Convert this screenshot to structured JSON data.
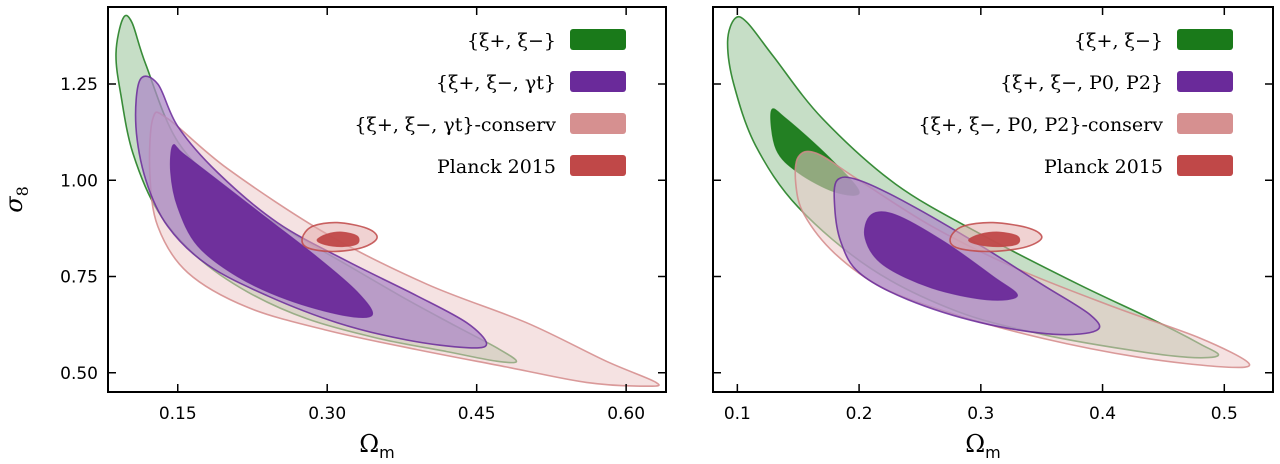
{
  "chart_data": [
    {
      "type": "contour",
      "xlabel": "Ω",
      "xlabel_sub": "m",
      "ylabel": "σ",
      "ylabel_sub": "8",
      "xlim": [
        0.08,
        0.64
      ],
      "ylim": [
        0.45,
        1.45
      ],
      "xticks": [
        0.15,
        0.3,
        0.45,
        0.6
      ],
      "xtick_labels": [
        "0.15",
        "0.30",
        "0.45",
        "0.60"
      ],
      "yticks": [
        0.5,
        0.75,
        1.0,
        1.25
      ],
      "ytick_labels": [
        "0.50",
        "0.75",
        "1.00",
        "1.25"
      ],
      "legend_position": "top-right",
      "series": [
        {
          "name": "{ξ+, ξ−}",
          "color": "#1a7a1a",
          "contours": [
            {
              "level": "95%",
              "points": [
                [
                  0.095,
                  1.42
                ],
                [
                  0.104,
                  1.41
                ],
                [
                  0.118,
                  1.3
                ],
                [
                  0.15,
                  1.1
                ],
                [
                  0.2,
                  0.97
                ],
                [
                  0.26,
                  0.87
                ],
                [
                  0.32,
                  0.78
                ],
                [
                  0.38,
                  0.69
                ],
                [
                  0.43,
                  0.62
                ],
                [
                  0.47,
                  0.565
                ],
                [
                  0.49,
                  0.53
                ],
                [
                  0.47,
                  0.53
                ],
                [
                  0.42,
                  0.555
                ],
                [
                  0.35,
                  0.59
                ],
                [
                  0.28,
                  0.64
                ],
                [
                  0.22,
                  0.71
                ],
                [
                  0.17,
                  0.8
                ],
                [
                  0.13,
                  0.92
                ],
                [
                  0.105,
                  1.07
                ],
                [
                  0.093,
                  1.22
                ],
                [
                  0.088,
                  1.33
                ]
              ]
            }
          ]
        },
        {
          "name": "{ξ+, ξ−, γt}",
          "color": "#6a2a9a",
          "contours": [
            {
              "level": "95%",
              "points": [
                [
                  0.112,
                  1.26
                ],
                [
                  0.13,
                  1.25
                ],
                [
                  0.15,
                  1.14
                ],
                [
                  0.19,
                  1.02
                ],
                [
                  0.25,
                  0.89
                ],
                [
                  0.32,
                  0.79
                ],
                [
                  0.39,
                  0.7
                ],
                [
                  0.44,
                  0.63
                ],
                [
                  0.46,
                  0.575
                ],
                [
                  0.44,
                  0.565
                ],
                [
                  0.38,
                  0.585
                ],
                [
                  0.31,
                  0.63
                ],
                [
                  0.24,
                  0.7
                ],
                [
                  0.18,
                  0.78
                ],
                [
                  0.14,
                  0.88
                ],
                [
                  0.118,
                  1.0
                ],
                [
                  0.108,
                  1.14
                ]
              ]
            },
            {
              "level": "68%",
              "points": [
                [
                  0.145,
                  1.09
                ],
                [
                  0.155,
                  1.07
                ],
                [
                  0.19,
                  1.0
                ],
                [
                  0.24,
                  0.9
                ],
                [
                  0.29,
                  0.8
                ],
                [
                  0.33,
                  0.71
                ],
                [
                  0.345,
                  0.65
                ],
                [
                  0.315,
                  0.65
                ],
                [
                  0.26,
                  0.69
                ],
                [
                  0.21,
                  0.75
                ],
                [
                  0.17,
                  0.83
                ],
                [
                  0.15,
                  0.93
                ],
                [
                  0.143,
                  1.02
                ]
              ]
            }
          ]
        },
        {
          "name": "{ξ+, ξ−, γt}-conserv",
          "color": "#d48a8a",
          "contours": [
            {
              "level": "95%",
              "points": [
                [
                  0.125,
                  1.16
                ],
                [
                  0.14,
                  1.16
                ],
                [
                  0.2,
                  1.03
                ],
                [
                  0.3,
                  0.86
                ],
                [
                  0.4,
                  0.73
                ],
                [
                  0.5,
                  0.63
                ],
                [
                  0.58,
                  0.53
                ],
                [
                  0.63,
                  0.475
                ],
                [
                  0.62,
                  0.465
                ],
                [
                  0.56,
                  0.475
                ],
                [
                  0.48,
                  0.515
                ],
                [
                  0.39,
                  0.56
                ],
                [
                  0.3,
                  0.61
                ],
                [
                  0.22,
                  0.67
                ],
                [
                  0.16,
                  0.76
                ],
                [
                  0.13,
                  0.88
                ],
                [
                  0.122,
                  1.02
                ]
              ]
            }
          ]
        },
        {
          "name": "Planck 2015",
          "color": "#c04848",
          "contours": [
            {
              "level": "95%",
              "points": [
                [
                  0.275,
                  0.85
                ],
                [
                  0.285,
                  0.88
                ],
                [
                  0.31,
                  0.89
                ],
                [
                  0.34,
                  0.875
                ],
                [
                  0.35,
                  0.85
                ],
                [
                  0.335,
                  0.825
                ],
                [
                  0.305,
                  0.815
                ],
                [
                  0.28,
                  0.825
                ]
              ]
            },
            {
              "level": "68%",
              "points": [
                [
                  0.29,
                  0.845
                ],
                [
                  0.3,
                  0.86
                ],
                [
                  0.315,
                  0.865
                ],
                [
                  0.33,
                  0.855
                ],
                [
                  0.33,
                  0.835
                ],
                [
                  0.315,
                  0.828
                ],
                [
                  0.298,
                  0.833
                ]
              ]
            }
          ]
        }
      ]
    },
    {
      "type": "contour",
      "xlabel": "Ω",
      "xlabel_sub": "m",
      "ylim": [
        0.45,
        1.45
      ],
      "xlim": [
        0.08,
        0.54
      ],
      "xticks": [
        0.1,
        0.2,
        0.3,
        0.4,
        0.5
      ],
      "xtick_labels": [
        "0.1",
        "0.2",
        "0.3",
        "0.4",
        "0.5"
      ],
      "yticks": [
        0.5,
        0.75,
        1.0,
        1.25
      ],
      "legend_position": "top-right",
      "series": [
        {
          "name": "{ξ+, ξ−}",
          "color": "#1a7a1a",
          "contours": [
            {
              "level": "95%",
              "points": [
                [
                  0.098,
                  1.42
                ],
                [
                  0.108,
                  1.41
                ],
                [
                  0.13,
                  1.32
                ],
                [
                  0.17,
                  1.16
                ],
                [
                  0.23,
                  0.99
                ],
                [
                  0.3,
                  0.86
                ],
                [
                  0.38,
                  0.73
                ],
                [
                  0.44,
                  0.64
                ],
                [
                  0.48,
                  0.575
                ],
                [
                  0.495,
                  0.545
                ],
                [
                  0.47,
                  0.54
                ],
                [
                  0.42,
                  0.56
                ],
                [
                  0.35,
                  0.6
                ],
                [
                  0.28,
                  0.66
                ],
                [
                  0.21,
                  0.77
                ],
                [
                  0.15,
                  0.93
                ],
                [
                  0.115,
                  1.09
                ],
                [
                  0.097,
                  1.25
                ],
                [
                  0.092,
                  1.36
                ]
              ]
            },
            {
              "level": "68%",
              "points": [
                [
                  0.128,
                  1.18
                ],
                [
                  0.14,
                  1.16
                ],
                [
                  0.175,
                  1.06
                ],
                [
                  0.2,
                  0.97
                ],
                [
                  0.18,
                  0.97
                ],
                [
                  0.15,
                  1.02
                ],
                [
                  0.132,
                  1.08
                ]
              ]
            }
          ]
        },
        {
          "name": "{ξ+, ξ−, P0, P2}",
          "color": "#6a2a9a",
          "contours": [
            {
              "level": "95%",
              "points": [
                [
                  0.182,
                  1.0
                ],
                [
                  0.2,
                  1.0
                ],
                [
                  0.24,
                  0.94
                ],
                [
                  0.3,
                  0.83
                ],
                [
                  0.35,
                  0.73
                ],
                [
                  0.39,
                  0.65
                ],
                [
                  0.395,
                  0.61
                ],
                [
                  0.36,
                  0.6
                ],
                [
                  0.3,
                  0.63
                ],
                [
                  0.24,
                  0.69
                ],
                [
                  0.2,
                  0.76
                ],
                [
                  0.185,
                  0.84
                ],
                [
                  0.18,
                  0.93
                ]
              ]
            },
            {
              "level": "68%",
              "points": [
                [
                  0.21,
                  0.91
                ],
                [
                  0.23,
                  0.91
                ],
                [
                  0.27,
                  0.84
                ],
                [
                  0.31,
                  0.75
                ],
                [
                  0.33,
                  0.7
                ],
                [
                  0.305,
                  0.69
                ],
                [
                  0.26,
                  0.72
                ],
                [
                  0.22,
                  0.78
                ],
                [
                  0.205,
                  0.85
                ]
              ]
            }
          ]
        },
        {
          "name": "{ξ+, ξ−, P0, P2}-conserv",
          "color": "#d48a8a",
          "contours": [
            {
              "level": "95%",
              "points": [
                [
                  0.15,
                  1.06
                ],
                [
                  0.165,
                  1.07
                ],
                [
                  0.2,
                  1.0
                ],
                [
                  0.26,
                  0.88
                ],
                [
                  0.33,
                  0.77
                ],
                [
                  0.41,
                  0.67
                ],
                [
                  0.48,
                  0.59
                ],
                [
                  0.52,
                  0.525
                ],
                [
                  0.5,
                  0.515
                ],
                [
                  0.43,
                  0.54
                ],
                [
                  0.35,
                  0.59
                ],
                [
                  0.28,
                  0.65
                ],
                [
                  0.22,
                  0.72
                ],
                [
                  0.18,
                  0.81
                ],
                [
                  0.155,
                  0.91
                ],
                [
                  0.148,
                  0.99
                ]
              ]
            }
          ]
        },
        {
          "name": "Planck 2015",
          "color": "#c04848",
          "contours": [
            {
              "level": "95%",
              "points": [
                [
                  0.275,
                  0.85
                ],
                [
                  0.285,
                  0.88
                ],
                [
                  0.31,
                  0.89
                ],
                [
                  0.34,
                  0.875
                ],
                [
                  0.35,
                  0.85
                ],
                [
                  0.335,
                  0.825
                ],
                [
                  0.305,
                  0.815
                ],
                [
                  0.28,
                  0.825
                ]
              ]
            },
            {
              "level": "68%",
              "points": [
                [
                  0.29,
                  0.845
                ],
                [
                  0.3,
                  0.86
                ],
                [
                  0.315,
                  0.865
                ],
                [
                  0.33,
                  0.855
                ],
                [
                  0.33,
                  0.835
                ],
                [
                  0.315,
                  0.828
                ],
                [
                  0.298,
                  0.833
                ]
              ]
            }
          ]
        }
      ]
    }
  ]
}
